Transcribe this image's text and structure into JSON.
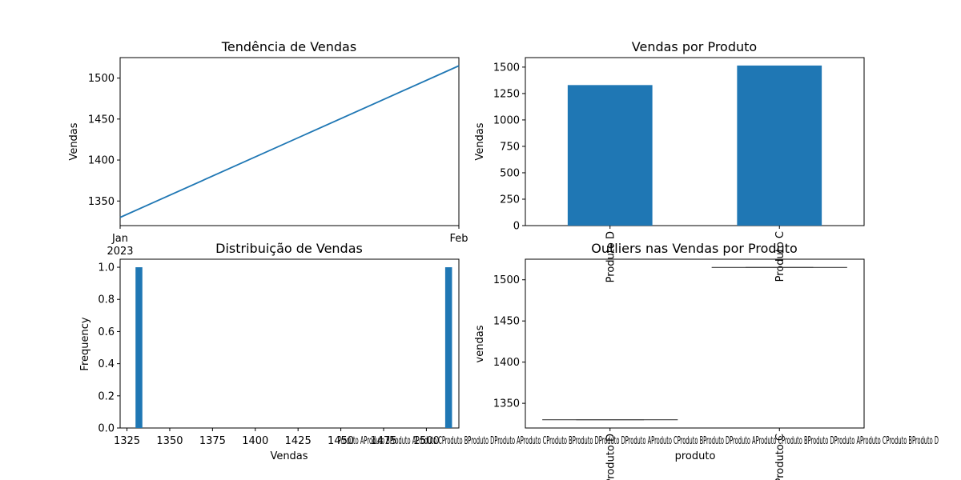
{
  "colors": {
    "series": "#1f77b4",
    "axis": "#000000",
    "background": "#ffffff"
  },
  "chart_data": [
    {
      "type": "line",
      "title": "Tendência de Vendas",
      "ylabel": "Vendas",
      "x": [
        "2023-01-01",
        "2023-02-01"
      ],
      "values": [
        1330,
        1515
      ],
      "x_ticks": [
        {
          "x": "2023-01-01",
          "label": "Jan",
          "sublabel": "2023"
        },
        {
          "x": "2023-02-01",
          "label": "Feb"
        }
      ],
      "ylim": [
        1320,
        1525
      ],
      "y_ticks": [
        1350,
        1400,
        1450,
        1500
      ],
      "grid": false
    },
    {
      "type": "bar",
      "title": "Vendas por Produto",
      "ylabel": "Vendas",
      "categories": [
        "Produto D",
        "Produto C"
      ],
      "values": [
        1330,
        1515
      ],
      "ylim": [
        0,
        1590
      ],
      "y_ticks": [
        0,
        250,
        500,
        750,
        1000,
        1250,
        1500
      ],
      "grid": false
    },
    {
      "type": "bar",
      "title": "Distribuição de Vendas",
      "xlabel": "Vendas",
      "ylabel": "Frequency",
      "bins": [
        {
          "start": 1330,
          "end": 1334,
          "count": 1
        },
        {
          "start": 1511,
          "end": 1515,
          "count": 1
        }
      ],
      "xlim": [
        1321,
        1519
      ],
      "ylim": [
        0,
        1.05
      ],
      "x_ticks": [
        1325,
        1350,
        1375,
        1400,
        1425,
        1450,
        1475,
        1500
      ],
      "y_ticks": [
        0.0,
        0.2,
        0.4,
        0.6,
        0.8,
        1.0
      ],
      "overlap_text": "Produto AProduto BProduto AProduto CProduto BProduto DProduto AProduto CProduto BProduto DProduto DProduto AProduto CProduto BProduto DProduto AProduto CProduto BProduto DProduto AProduto CProduto BProduto D",
      "grid": false
    },
    {
      "type": "box",
      "title": "Outliers nas Vendas por Produto",
      "xlabel": "produto",
      "ylabel": "vendas",
      "categories": [
        "Produto D",
        "Produto C"
      ],
      "values": [
        1330,
        1515
      ],
      "ylim": [
        1320,
        1525
      ],
      "y_ticks": [
        1350,
        1400,
        1450,
        1500
      ],
      "grid": false
    }
  ]
}
